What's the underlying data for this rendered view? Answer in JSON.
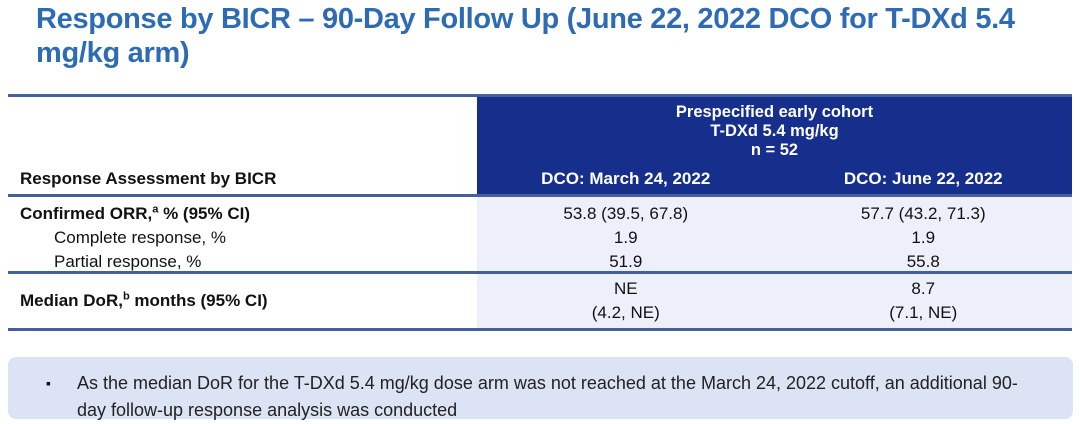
{
  "slide": {
    "title": "Response by BICR – 90-Day Follow Up (June 22, 2022 DCO for T-DXd 5.4 mg/kg arm)"
  },
  "table": {
    "stub_header": "Response Assessment by BICR",
    "group_header": {
      "line1": "Prespecified early cohort",
      "line2": "T-DXd 5.4 mg/kg",
      "line3": "n = 52"
    },
    "column_headers": [
      "DCO: March 24, 2022",
      "DCO: June 22, 2022"
    ],
    "rows": {
      "confirmed_orr": {
        "label_pre": "Confirmed ORR,",
        "sup": "a",
        "label_post": " % (95% CI)",
        "march": "53.8 (39.5, 67.8)",
        "june": "57.7 (43.2, 71.3)"
      },
      "complete_response": {
        "label": "Complete response, %",
        "march": "1.9",
        "june": "1.9"
      },
      "partial_response": {
        "label": "Partial response, %",
        "march": "51.9",
        "june": "55.8"
      },
      "median_dor": {
        "label_pre": "Median DoR,",
        "sup": "b",
        "label_post": " months (95% CI)",
        "march_line1": "NE",
        "march_line2": "(4.2, NE)",
        "june_line1": "8.7",
        "june_line2": "(7.1, NE)"
      }
    }
  },
  "footnote": {
    "bullet_glyph": "▪",
    "text": "As the median DoR for the T-DXd 5.4 mg/kg dose arm was not reached at the March 24, 2022 cutoff, an additional 90-day follow-up response analysis was conducted"
  },
  "colors": {
    "title_blue": "#2d6cb4",
    "header_navy": "#162f8c",
    "rule_blue": "#44609c",
    "body_column_bg": "#edf0fa",
    "footnote_bg": "#dce3f4"
  }
}
